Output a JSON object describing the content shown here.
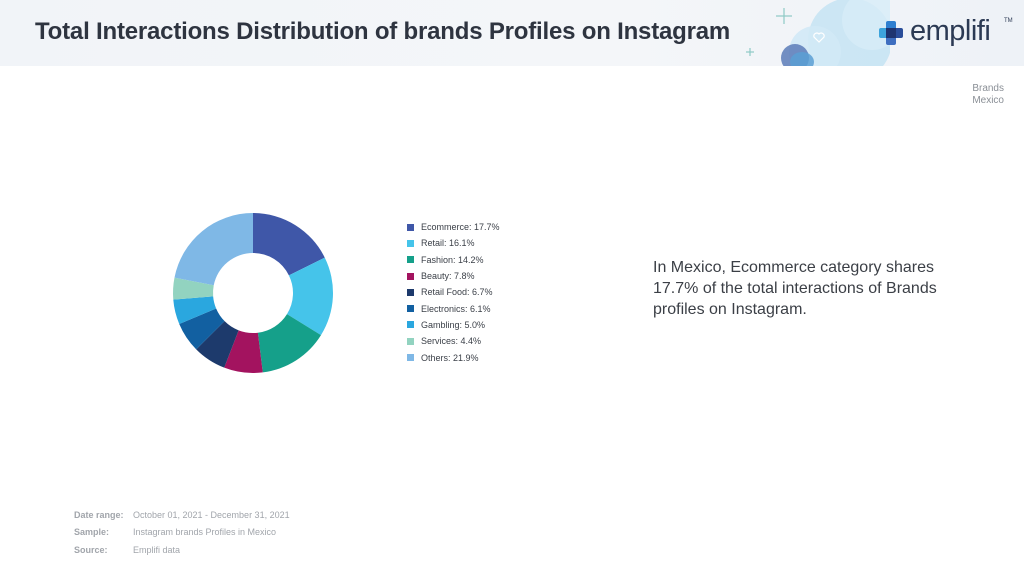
{
  "header": {
    "title": "Total Interactions Distribution of brands Profiles on Instagram",
    "logo_text": "emplifi",
    "logo_tm": "TM"
  },
  "corner": {
    "line1": "Brands",
    "line2": "Mexico"
  },
  "chart_data": {
    "type": "pie",
    "donut": true,
    "categories": [
      "Ecommerce",
      "Retail",
      "Fashion",
      "Beauty",
      "Retail Food",
      "Electronics",
      "Gambling",
      "Services",
      "Others"
    ],
    "values": [
      17.7,
      16.1,
      14.2,
      7.8,
      6.7,
      6.1,
      5.0,
      4.4,
      21.9
    ],
    "colors": [
      "#3f57a8",
      "#45c4ea",
      "#15a08a",
      "#a3135f",
      "#1d3a6c",
      "#1260a1",
      "#2aa7df",
      "#92d3c0",
      "#7fb8e6"
    ],
    "legend_labels": [
      "Ecommerce: 17.7%",
      "Retail: 16.1%",
      "Fashion: 14.2%",
      "Beauty: 7.8%",
      "Retail Food: 6.7%",
      "Electronics: 6.1%",
      "Gambling: 5.0%",
      "Services: 4.4%",
      "Others: 21.9%"
    ],
    "legend_position": "right"
  },
  "insight": "In Mexico, Ecommerce category shares 17.7% of the total interactions of Brands profiles on Instagram.",
  "meta": [
    {
      "key": "Date range:",
      "value": "October 01, 2021 - December 31, 2021"
    },
    {
      "key": "Sample:",
      "value": "Instagram brands Profiles in Mexico"
    },
    {
      "key": "Source:",
      "value": "Emplifi data"
    }
  ],
  "icons": [
    "emplifi-logo-icon",
    "decorative-cloud-icon",
    "plus-sparkle-icon",
    "heart-outline-icon"
  ]
}
